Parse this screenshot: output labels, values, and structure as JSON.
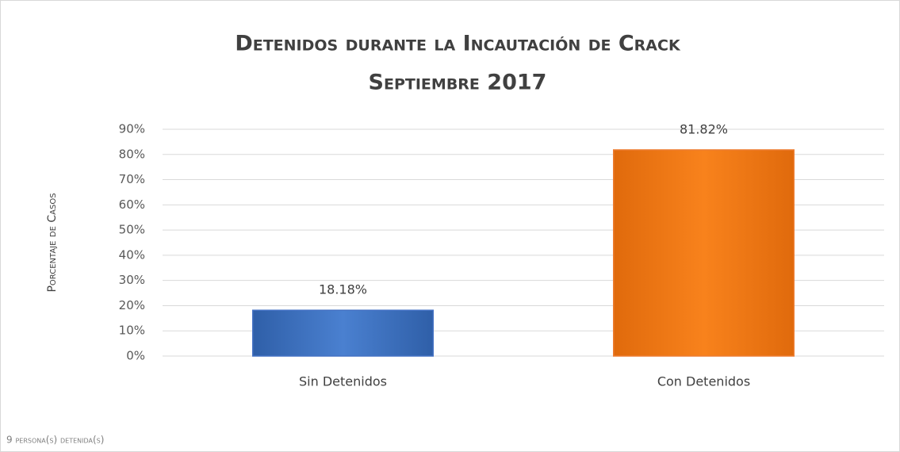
{
  "chart_data": {
    "type": "bar",
    "title": "Detenidos durante la Incautación de Crack",
    "subtitle": "Septiembre 2017",
    "y_label": "Porcentaje de Casos",
    "note": "9 persona(s) detenida(s)",
    "categories": [
      "Sin Detenidos",
      "Con Detenidos"
    ],
    "values": [
      18.18,
      81.82
    ],
    "value_labels": [
      "18.18%",
      "81.82%"
    ],
    "colors": [
      "#4472c4",
      "#ed7d31"
    ],
    "ylim": [
      0,
      90
    ],
    "yticks": [
      {
        "value": 0,
        "label": "0%"
      },
      {
        "value": 10,
        "label": "10%"
      },
      {
        "value": 20,
        "label": "20%"
      },
      {
        "value": 30,
        "label": "30%"
      },
      {
        "value": 40,
        "label": "40%"
      },
      {
        "value": 50,
        "label": "50%"
      },
      {
        "value": 60,
        "label": "60%"
      },
      {
        "value": 70,
        "label": "70%"
      },
      {
        "value": 80,
        "label": "80%"
      },
      {
        "value": 90,
        "label": "90%"
      }
    ],
    "grid": true
  }
}
